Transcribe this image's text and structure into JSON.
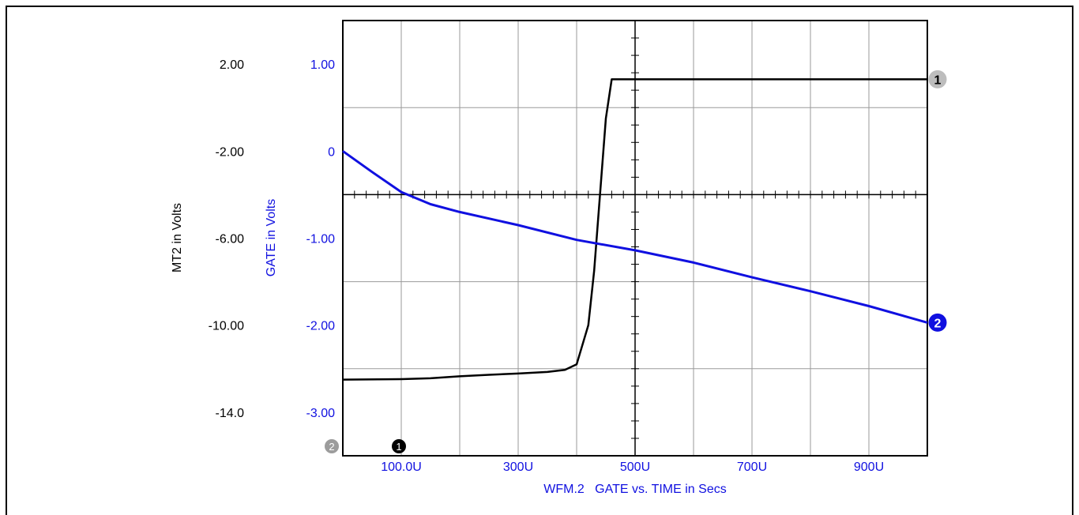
{
  "chart_data": {
    "type": "line",
    "title": "WFM.2   GATE vs. TIME in Secs",
    "xlabel": "WFM.2   GATE vs. TIME in Secs",
    "x_unit": "s",
    "xlim": [
      0,
      0.001
    ],
    "x_ticks": [
      {
        "value": 0.0001,
        "label": "100.0U"
      },
      {
        "value": 0.0003,
        "label": "300U"
      },
      {
        "value": 0.0005,
        "label": "500U"
      },
      {
        "value": 0.0007,
        "label": "700U"
      },
      {
        "value": 0.0009,
        "label": "900U"
      }
    ],
    "y_axes": {
      "left": {
        "label": "MT2 in Volts",
        "color": "#000000",
        "ylim": [
          -16.0,
          4.0
        ],
        "ticks": [
          {
            "value": 2.0,
            "label": "2.00"
          },
          {
            "value": -2.0,
            "label": "-2.00"
          },
          {
            "value": -6.0,
            "label": "-6.00"
          },
          {
            "value": -10.0,
            "label": "-10.00"
          },
          {
            "value": -14.0,
            "label": "-14.0"
          }
        ]
      },
      "right": {
        "label": "GATE in Volts",
        "color": "#1010e0",
        "ylim": [
          -3.5,
          1.5
        ],
        "ticks": [
          {
            "value": 1.0,
            "label": "1.00"
          },
          {
            "value": 0.0,
            "label": "0"
          },
          {
            "value": -1.0,
            "label": "-1.00"
          },
          {
            "value": -2.0,
            "label": "-2.00"
          },
          {
            "value": -3.0,
            "label": "-3.00"
          }
        ]
      }
    },
    "series": [
      {
        "marker": "1",
        "axis": "left",
        "color": "#000000",
        "points": [
          [
            0,
            -12.5
          ],
          [
            0.0001,
            -12.48
          ],
          [
            0.00015,
            -12.44
          ],
          [
            0.0002,
            -12.35
          ],
          [
            0.00025,
            -12.28
          ],
          [
            0.0003,
            -12.22
          ],
          [
            0.00035,
            -12.15
          ],
          [
            0.00038,
            -12.05
          ],
          [
            0.0004,
            -11.8
          ],
          [
            0.00042,
            -10.0
          ],
          [
            0.00043,
            -7.5
          ],
          [
            0.00044,
            -4.0
          ],
          [
            0.00045,
            -0.5
          ],
          [
            0.00046,
            1.3
          ],
          [
            0.001,
            1.3
          ]
        ]
      },
      {
        "marker": "2",
        "axis": "right",
        "color": "#1010e0",
        "points": [
          [
            0,
            0.0
          ],
          [
            5e-05,
            -0.24
          ],
          [
            0.0001,
            -0.47
          ],
          [
            0.00015,
            -0.61
          ],
          [
            0.0002,
            -0.7
          ],
          [
            0.0003,
            -0.85
          ],
          [
            0.0004,
            -1.02
          ],
          [
            0.0005,
            -1.14
          ],
          [
            0.0006,
            -1.28
          ],
          [
            0.0007,
            -1.45
          ],
          [
            0.0008,
            -1.61
          ],
          [
            0.0009,
            -1.78
          ],
          [
            0.001,
            -1.97
          ]
        ]
      }
    ],
    "grid": true,
    "cursor_markers": [
      {
        "label": "2",
        "color": "#999999"
      },
      {
        "label": "1",
        "color": "#000000"
      }
    ]
  }
}
